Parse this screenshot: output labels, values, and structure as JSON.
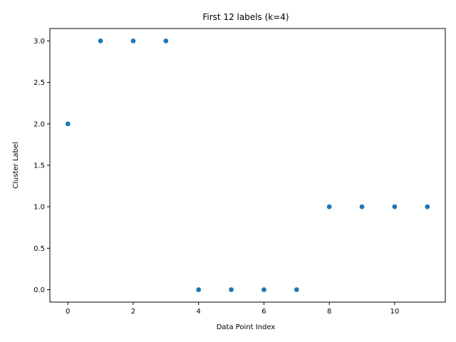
{
  "chart_data": {
    "type": "scatter",
    "title": "First 12 labels (k=4)",
    "xlabel": "Data Point Index",
    "ylabel": "Cluster Label",
    "x": [
      0,
      1,
      2,
      3,
      4,
      5,
      6,
      7,
      8,
      9,
      10,
      11
    ],
    "y": [
      2,
      3,
      3,
      3,
      0,
      0,
      0,
      0,
      1,
      1,
      1,
      1
    ],
    "xlim": [
      -0.55,
      11.55
    ],
    "ylim": [
      -0.15,
      3.15
    ],
    "xticks": [
      0,
      2,
      4,
      6,
      8,
      10
    ],
    "xtick_labels": [
      "0",
      "2",
      "4",
      "6",
      "8",
      "10"
    ],
    "yticks": [
      0,
      0.5,
      1,
      1.5,
      2,
      2.5,
      3
    ],
    "ytick_labels": [
      "0.0",
      "0.5",
      "1.0",
      "1.5",
      "2.0",
      "2.5",
      "3.0"
    ],
    "grid": false,
    "marker_color": "#1f77b4"
  }
}
